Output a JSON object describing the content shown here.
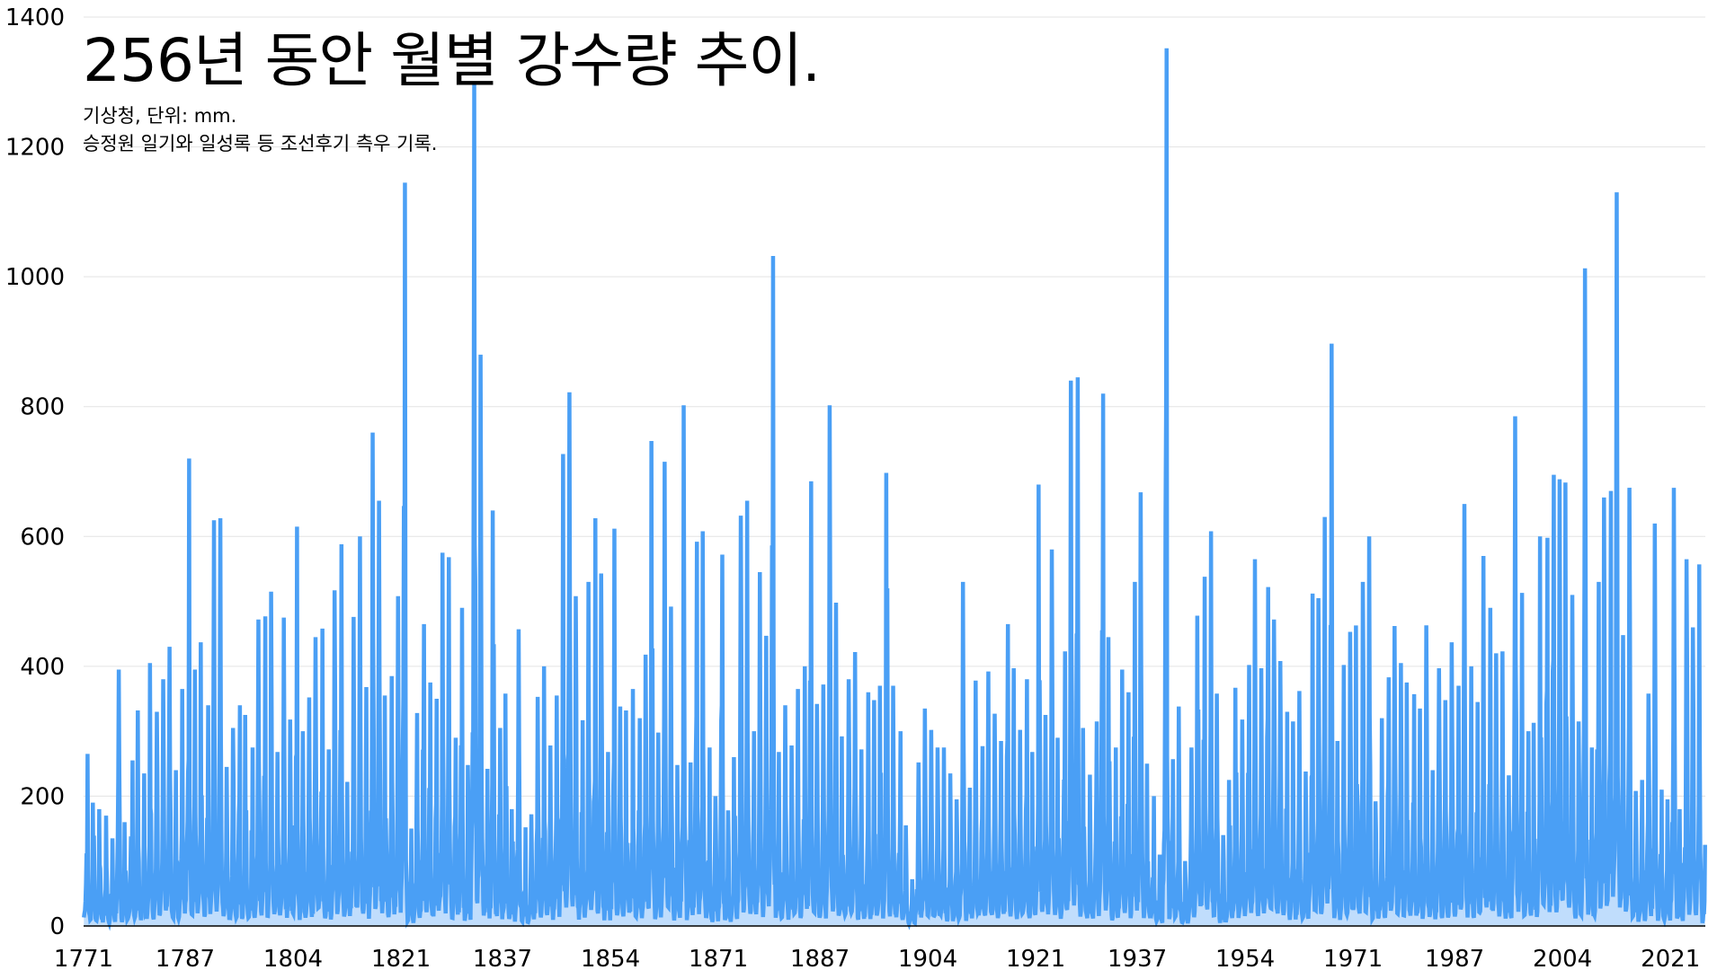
{
  "chart_data": {
    "type": "line",
    "title": "256년 동안 월별 강수량 추이.",
    "subtitle_lines": [
      "기상청, 단위: mm.",
      "승정원 일기와 일성록 등 조선후기 측우 기록."
    ],
    "xlabel": "",
    "ylabel": "",
    "x_ticks": [
      "1771",
      "1787",
      "1804",
      "1821",
      "1837",
      "1854",
      "1871",
      "1887",
      "1904",
      "1921",
      "1937",
      "1954",
      "1971",
      "1987",
      "2004",
      "2021"
    ],
    "y_ticks": [
      0,
      200,
      400,
      600,
      800,
      1000,
      1200,
      1400
    ],
    "ylim": [
      0,
      1400
    ],
    "xlim": [
      1771,
      2026.5
    ],
    "grid": "horizontal",
    "legend": "none",
    "series": [
      {
        "color": "#4a9ff5",
        "annual_peaks": [
          [
            1771,
            265
          ],
          [
            1772,
            190
          ],
          [
            1773,
            180
          ],
          [
            1774,
            170
          ],
          [
            1775,
            135
          ],
          [
            1776,
            395
          ],
          [
            1777,
            160
          ],
          [
            1778,
            255
          ],
          [
            1779,
            332
          ],
          [
            1780,
            235
          ],
          [
            1781,
            405
          ],
          [
            1782,
            330
          ],
          [
            1783,
            380
          ],
          [
            1784,
            430
          ],
          [
            1785,
            240
          ],
          [
            1786,
            365
          ],
          [
            1787,
            720
          ],
          [
            1788,
            395
          ],
          [
            1789,
            437
          ],
          [
            1790,
            340
          ],
          [
            1791,
            625
          ],
          [
            1792,
            628
          ],
          [
            1793,
            245
          ],
          [
            1794,
            305
          ],
          [
            1795,
            340
          ],
          [
            1796,
            325
          ],
          [
            1797,
            275
          ],
          [
            1798,
            472
          ],
          [
            1799,
            477
          ],
          [
            1800,
            515
          ],
          [
            1801,
            268
          ],
          [
            1802,
            475
          ],
          [
            1803,
            318
          ],
          [
            1804,
            615
          ],
          [
            1805,
            300
          ],
          [
            1806,
            352
          ],
          [
            1807,
            445
          ],
          [
            1808,
            458
          ],
          [
            1809,
            272
          ],
          [
            1810,
            517
          ],
          [
            1811,
            588
          ],
          [
            1812,
            222
          ],
          [
            1813,
            476
          ],
          [
            1814,
            600
          ],
          [
            1815,
            368
          ],
          [
            1816,
            760
          ],
          [
            1817,
            655
          ],
          [
            1818,
            355
          ],
          [
            1819,
            385
          ],
          [
            1820,
            508
          ],
          [
            1821,
            1145
          ],
          [
            1822,
            150
          ],
          [
            1823,
            328
          ],
          [
            1824,
            465
          ],
          [
            1825,
            375
          ],
          [
            1826,
            350
          ],
          [
            1827,
            575
          ],
          [
            1828,
            568
          ],
          [
            1829,
            290
          ],
          [
            1830,
            490
          ],
          [
            1831,
            248
          ],
          [
            1832,
            1300
          ],
          [
            1833,
            880
          ],
          [
            1834,
            242
          ],
          [
            1835,
            640
          ],
          [
            1836,
            305
          ],
          [
            1837,
            358
          ],
          [
            1838,
            180
          ],
          [
            1839,
            457
          ],
          [
            1840,
            152
          ],
          [
            1841,
            172
          ],
          [
            1842,
            353
          ],
          [
            1843,
            400
          ],
          [
            1844,
            278
          ],
          [
            1845,
            355
          ],
          [
            1846,
            727
          ],
          [
            1847,
            822
          ],
          [
            1848,
            508
          ],
          [
            1849,
            317
          ],
          [
            1850,
            530
          ],
          [
            1851,
            628
          ],
          [
            1852,
            543
          ],
          [
            1853,
            268
          ],
          [
            1854,
            612
          ],
          [
            1855,
            338
          ],
          [
            1856,
            332
          ],
          [
            1857,
            365
          ],
          [
            1858,
            320
          ],
          [
            1859,
            418
          ],
          [
            1860,
            747
          ],
          [
            1861,
            298
          ],
          [
            1862,
            715
          ],
          [
            1863,
            492
          ],
          [
            1864,
            248
          ],
          [
            1865,
            802
          ],
          [
            1866,
            252
          ],
          [
            1867,
            592
          ],
          [
            1868,
            608
          ],
          [
            1869,
            275
          ],
          [
            1870,
            200
          ],
          [
            1871,
            572
          ],
          [
            1872,
            178
          ],
          [
            1873,
            260
          ],
          [
            1874,
            632
          ],
          [
            1875,
            655
          ],
          [
            1876,
            300
          ],
          [
            1877,
            545
          ],
          [
            1878,
            447
          ],
          [
            1879,
            1032
          ],
          [
            1880,
            268
          ],
          [
            1881,
            340
          ],
          [
            1882,
            278
          ],
          [
            1883,
            365
          ],
          [
            1884,
            400
          ],
          [
            1885,
            685
          ],
          [
            1886,
            342
          ],
          [
            1887,
            372
          ],
          [
            1888,
            802
          ],
          [
            1889,
            498
          ],
          [
            1890,
            292
          ],
          [
            1891,
            380
          ],
          [
            1892,
            422
          ],
          [
            1893,
            272
          ],
          [
            1894,
            360
          ],
          [
            1895,
            348
          ],
          [
            1896,
            370
          ],
          [
            1897,
            698
          ],
          [
            1898,
            370
          ],
          [
            1899,
            300
          ],
          [
            1900,
            155
          ],
          [
            1901,
            72
          ],
          [
            1902,
            252
          ],
          [
            1903,
            335
          ],
          [
            1904,
            302
          ],
          [
            1905,
            275
          ],
          [
            1906,
            275
          ],
          [
            1907,
            235
          ],
          [
            1908,
            195
          ],
          [
            1909,
            530
          ],
          [
            1910,
            213
          ],
          [
            1911,
            378
          ],
          [
            1912,
            277
          ],
          [
            1913,
            392
          ],
          [
            1914,
            327
          ],
          [
            1915,
            285
          ],
          [
            1916,
            465
          ],
          [
            1917,
            397
          ],
          [
            1918,
            302
          ],
          [
            1919,
            380
          ],
          [
            1920,
            268
          ],
          [
            1921,
            680
          ],
          [
            1922,
            325
          ],
          [
            1923,
            580
          ],
          [
            1924,
            290
          ],
          [
            1925,
            423
          ],
          [
            1926,
            840
          ],
          [
            1927,
            845
          ],
          [
            1928,
            305
          ],
          [
            1929,
            233
          ],
          [
            1930,
            315
          ],
          [
            1931,
            820
          ],
          [
            1932,
            445
          ],
          [
            1933,
            275
          ],
          [
            1934,
            395
          ],
          [
            1935,
            360
          ],
          [
            1936,
            530
          ],
          [
            1937,
            668
          ],
          [
            1938,
            250
          ],
          [
            1939,
            200
          ],
          [
            1940,
            110
          ],
          [
            1941,
            1352
          ],
          [
            1942,
            257
          ],
          [
            1943,
            338
          ],
          [
            1944,
            100
          ],
          [
            1945,
            275
          ],
          [
            1946,
            478
          ],
          [
            1947,
            538
          ],
          [
            1948,
            608
          ],
          [
            1949,
            358
          ],
          [
            1950,
            140
          ],
          [
            1951,
            225
          ],
          [
            1952,
            367
          ],
          [
            1953,
            318
          ],
          [
            1954,
            402
          ],
          [
            1955,
            565
          ],
          [
            1956,
            397
          ],
          [
            1957,
            522
          ],
          [
            1958,
            472
          ],
          [
            1959,
            408
          ],
          [
            1960,
            330
          ],
          [
            1961,
            315
          ],
          [
            1962,
            362
          ],
          [
            1963,
            238
          ],
          [
            1964,
            512
          ],
          [
            1965,
            505
          ],
          [
            1966,
            630
          ],
          [
            1967,
            897
          ],
          [
            1968,
            285
          ],
          [
            1969,
            402
          ],
          [
            1970,
            453
          ],
          [
            1971,
            463
          ],
          [
            1972,
            530
          ],
          [
            1973,
            600
          ],
          [
            1974,
            192
          ],
          [
            1975,
            320
          ],
          [
            1976,
            383
          ],
          [
            1977,
            462
          ],
          [
            1978,
            405
          ],
          [
            1979,
            375
          ],
          [
            1980,
            357
          ],
          [
            1981,
            335
          ],
          [
            1982,
            463
          ],
          [
            1983,
            240
          ],
          [
            1984,
            397
          ],
          [
            1985,
            348
          ],
          [
            1986,
            437
          ],
          [
            1987,
            370
          ],
          [
            1988,
            650
          ],
          [
            1989,
            400
          ],
          [
            1990,
            345
          ],
          [
            1991,
            570
          ],
          [
            1992,
            490
          ],
          [
            1993,
            420
          ],
          [
            1994,
            423
          ],
          [
            1995,
            232
          ],
          [
            1996,
            785
          ],
          [
            1997,
            513
          ],
          [
            1998,
            300
          ],
          [
            1999,
            313
          ],
          [
            2000,
            600
          ],
          [
            2001,
            598
          ],
          [
            2002,
            695
          ],
          [
            2003,
            688
          ],
          [
            2004,
            683
          ],
          [
            2005,
            510
          ],
          [
            2006,
            315
          ],
          [
            2007,
            1013
          ],
          [
            2008,
            275
          ],
          [
            2009,
            530
          ],
          [
            2010,
            660
          ],
          [
            2011,
            670
          ],
          [
            2012,
            1130
          ],
          [
            2013,
            448
          ],
          [
            2014,
            675
          ],
          [
            2015,
            208
          ],
          [
            2016,
            225
          ],
          [
            2017,
            358
          ],
          [
            2018,
            620
          ],
          [
            2019,
            210
          ],
          [
            2020,
            195
          ],
          [
            2021,
            675
          ],
          [
            2022,
            180
          ],
          [
            2023,
            565
          ],
          [
            2024,
            460
          ],
          [
            2025,
            557
          ],
          [
            2026,
            125
          ]
        ]
      }
    ]
  }
}
